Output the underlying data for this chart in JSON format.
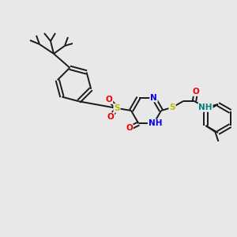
{
  "bg_color": "#e8e8e8",
  "bond_color": "#1a1a1a",
  "bond_lw": 1.4,
  "atom_colors": {
    "N": "#0000ee",
    "O": "#ee0000",
    "S": "#bbbb00",
    "NH": "#008080",
    "C": "#1a1a1a"
  },
  "fs": 7.5
}
